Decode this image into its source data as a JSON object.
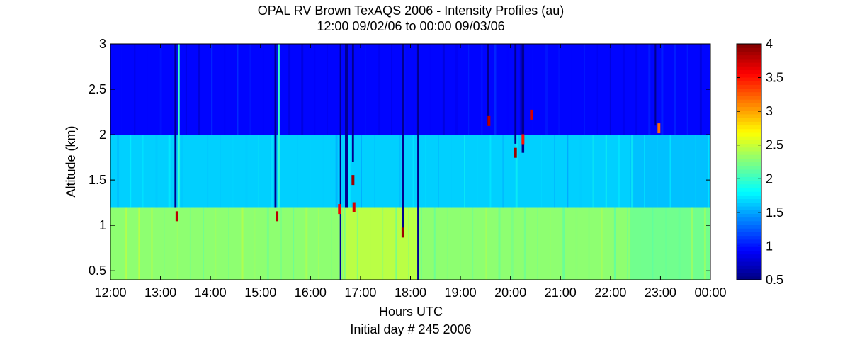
{
  "chart_data": {
    "type": "heatmap",
    "title": "OPAL RV Brown TexAQS 2006 - Intensity Profiles (au)",
    "subtitle": "12:00 09/02/06 to 00:00 09/03/06",
    "xlabel": "Hours UTC",
    "xlabel2": "Initial day # 245  2006",
    "ylabel": "Altitude (km)",
    "x_ticks": [
      "12:00",
      "13:00",
      "14:00",
      "15:00",
      "16:00",
      "17:00",
      "18:00",
      "19:00",
      "20:00",
      "21:00",
      "22:00",
      "23:00",
      "00:00"
    ],
    "x_range_hours": [
      12,
      24
    ],
    "y_ticks": [
      0.5,
      1,
      1.5,
      2,
      2.5,
      3
    ],
    "y_tick_labels": [
      "0.5",
      "1",
      "1.5",
      "2",
      "2.5",
      "3"
    ],
    "ylim": [
      0.4,
      3.0
    ],
    "colorbar": {
      "ticks": [
        0.5,
        1,
        1.5,
        2,
        2.5,
        3,
        3.5,
        4
      ],
      "tick_labels": [
        "0.5",
        "1",
        "1.5",
        "2",
        "2.5",
        "3",
        "3.5",
        "4"
      ],
      "range": [
        0.5,
        4
      ],
      "colormap": "jet"
    },
    "layers": [
      {
        "altitude_km": [
          0.4,
          1.2
        ],
        "intensity": 2.3
      },
      {
        "altitude_km": [
          1.2,
          2.0
        ],
        "intensity": 1.65
      },
      {
        "altitude_km": [
          2.0,
          3.0
        ],
        "intensity": 0.95
      }
    ],
    "time_segments": [
      {
        "hours": [
          16.65,
          18.15
        ],
        "low_layer_intensity": 2.45
      },
      {
        "hours": [
          22.4,
          24.0
        ],
        "low_layer_intensity": 2.2,
        "mid_layer_intensity": 1.6
      }
    ],
    "dropouts": [
      {
        "hour": 13.3,
        "width_h": 0.04,
        "from_km": 1.2
      },
      {
        "hour": 15.3,
        "width_h": 0.04,
        "from_km": 1.2
      },
      {
        "hour": 16.6,
        "width_h": 0.02,
        "from_km": 0.4
      },
      {
        "hour": 16.72,
        "width_h": 0.06,
        "from_km": 1.2
      },
      {
        "hour": 16.85,
        "width_h": 0.04,
        "from_km": 1.7
      },
      {
        "hour": 17.85,
        "width_h": 0.05,
        "from_km": 0.9
      },
      {
        "hour": 18.15,
        "width_h": 0.02,
        "from_km": 0.4
      },
      {
        "hour": 19.55,
        "width_h": 0.04,
        "from_km": 2.1
      },
      {
        "hour": 20.1,
        "width_h": 0.04,
        "from_km": 1.9
      },
      {
        "hour": 20.25,
        "width_h": 0.05,
        "from_km": 1.8
      },
      {
        "hour": 22.9,
        "width_h": 0.03,
        "from_km": 2.1
      }
    ],
    "bright_columns": [
      {
        "hour": 13.37,
        "from_km": 1.2,
        "to_km": 3.0,
        "intensity": 2.0
      },
      {
        "hour": 15.37,
        "from_km": 1.2,
        "to_km": 3.0,
        "intensity": 2.0
      }
    ],
    "hot_spots": [
      {
        "hour": 13.33,
        "altitude_km": 1.1,
        "intensity": 3.8
      },
      {
        "hour": 15.33,
        "altitude_km": 1.1,
        "intensity": 3.8
      },
      {
        "hour": 16.58,
        "altitude_km": 1.18,
        "intensity": 3.6
      },
      {
        "hour": 16.85,
        "altitude_km": 1.5,
        "intensity": 3.9
      },
      {
        "hour": 16.87,
        "altitude_km": 1.2,
        "intensity": 3.7
      },
      {
        "hour": 17.85,
        "altitude_km": 0.92,
        "intensity": 3.9
      },
      {
        "hour": 19.57,
        "altitude_km": 2.15,
        "intensity": 3.8
      },
      {
        "hour": 20.1,
        "altitude_km": 1.8,
        "intensity": 3.9
      },
      {
        "hour": 20.25,
        "altitude_km": 1.95,
        "intensity": 3.5
      },
      {
        "hour": 20.42,
        "altitude_km": 2.22,
        "intensity": 3.7
      },
      {
        "hour": 22.97,
        "altitude_km": 2.07,
        "intensity": 3.2
      }
    ]
  }
}
